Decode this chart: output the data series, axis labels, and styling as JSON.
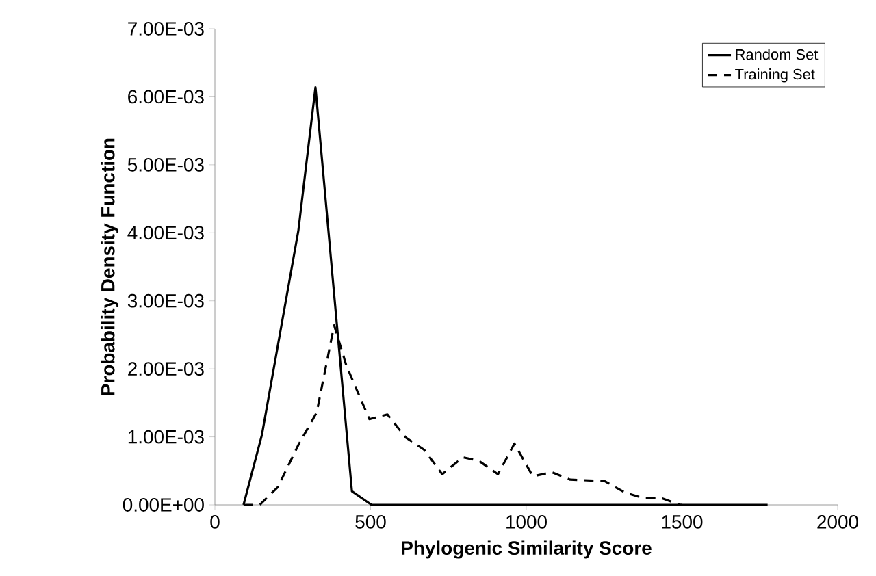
{
  "chart_data": {
    "type": "line",
    "xlabel": "Phylogenic Similarity Score",
    "ylabel": "Probability Density Function",
    "xlim": [
      0,
      2000
    ],
    "xticks": [
      0,
      500,
      1000,
      1500,
      2000
    ],
    "ylim": [
      0,
      0.007
    ],
    "yticks": [
      {
        "value": 0,
        "label": "0.00E+00"
      },
      {
        "value": 0.001,
        "label": "1.00E-03"
      },
      {
        "value": 0.002,
        "label": "2.00E-03"
      },
      {
        "value": 0.003,
        "label": "3.00E-03"
      },
      {
        "value": 0.004,
        "label": "4.00E-03"
      },
      {
        "value": 0.005,
        "label": "5.00E-03"
      },
      {
        "value": 0.006,
        "label": "6.00E-03"
      },
      {
        "value": 0.007,
        "label": "7.00E-03"
      }
    ],
    "legend": "top right",
    "grid": false,
    "marker": "none",
    "series": [
      {
        "name": "Random Set",
        "color": "#000000",
        "line_style": "solid",
        "x": [
          92,
          151,
          268,
          323,
          440,
          503,
          600,
          800,
          1775
        ],
        "values": [
          0,
          0.00103,
          0.00403,
          0.00614,
          0.0002,
          0,
          0,
          0,
          0
        ]
      },
      {
        "name": "Training Set",
        "color": "#000000",
        "line_style": "dashed",
        "x": [
          92,
          144,
          202,
          268,
          327,
          383,
          422,
          496,
          554,
          613,
          672,
          730,
          796,
          847,
          909,
          962,
          1021,
          1082,
          1141,
          1251,
          1317,
          1376,
          1434,
          1493,
          1500
        ],
        "values": [
          0,
          0,
          0.00026,
          0.00088,
          0.00136,
          0.00264,
          0.00205,
          0.00126,
          0.00133,
          0.00099,
          0.00081,
          0.00045,
          0.0007,
          0.00065,
          0.00045,
          0.0009,
          0.00042,
          0.00048,
          0.00037,
          0.00035,
          0.00018,
          0.0001,
          0.0001,
          0,
          0
        ]
      }
    ]
  }
}
